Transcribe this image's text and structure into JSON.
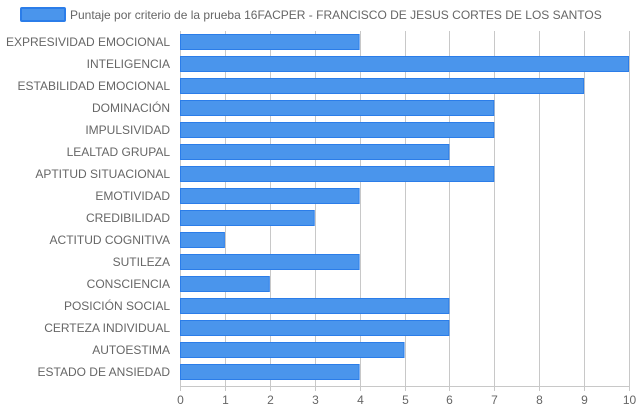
{
  "chart_data": {
    "type": "bar",
    "orientation": "horizontal",
    "title": "",
    "categories": [
      "EXPRESIVIDAD EMOCIONAL",
      "INTELIGENCIA",
      "ESTABILIDAD EMOCIONAL",
      "DOMINACIÓN",
      "IMPULSIVIDAD",
      "LEALTAD GRUPAL",
      "APTITUD SITUACIONAL",
      "EMOTIVIDAD",
      "CREDIBILIDAD",
      "ACTITUD COGNITIVA",
      "SUTILEZA",
      "CONSCIENCIA",
      "POSICIÓN SOCIAL",
      "CERTEZA INDIVIDUAL",
      "AUTOESTIMA",
      "ESTADO DE ANSIEDAD"
    ],
    "series": [
      {
        "name": "Puntaje por criterio de la prueba 16FACPER - FRANCISCO DE JESUS CORTES DE LOS SANTOS",
        "values": [
          4,
          10,
          9,
          7,
          7,
          6,
          7,
          4,
          3,
          1,
          4,
          2,
          6,
          6,
          5,
          4
        ],
        "color": "#4a95ec",
        "border_color": "#2b7de9"
      }
    ],
    "xlim": [
      0,
      10
    ],
    "x_ticks": [
      "0",
      "1",
      "2",
      "3",
      "4",
      "5",
      "6",
      "7",
      "8",
      "9",
      "10"
    ],
    "grid": true,
    "legend_position": "top-center",
    "grid_color": "#c8c8c8"
  }
}
